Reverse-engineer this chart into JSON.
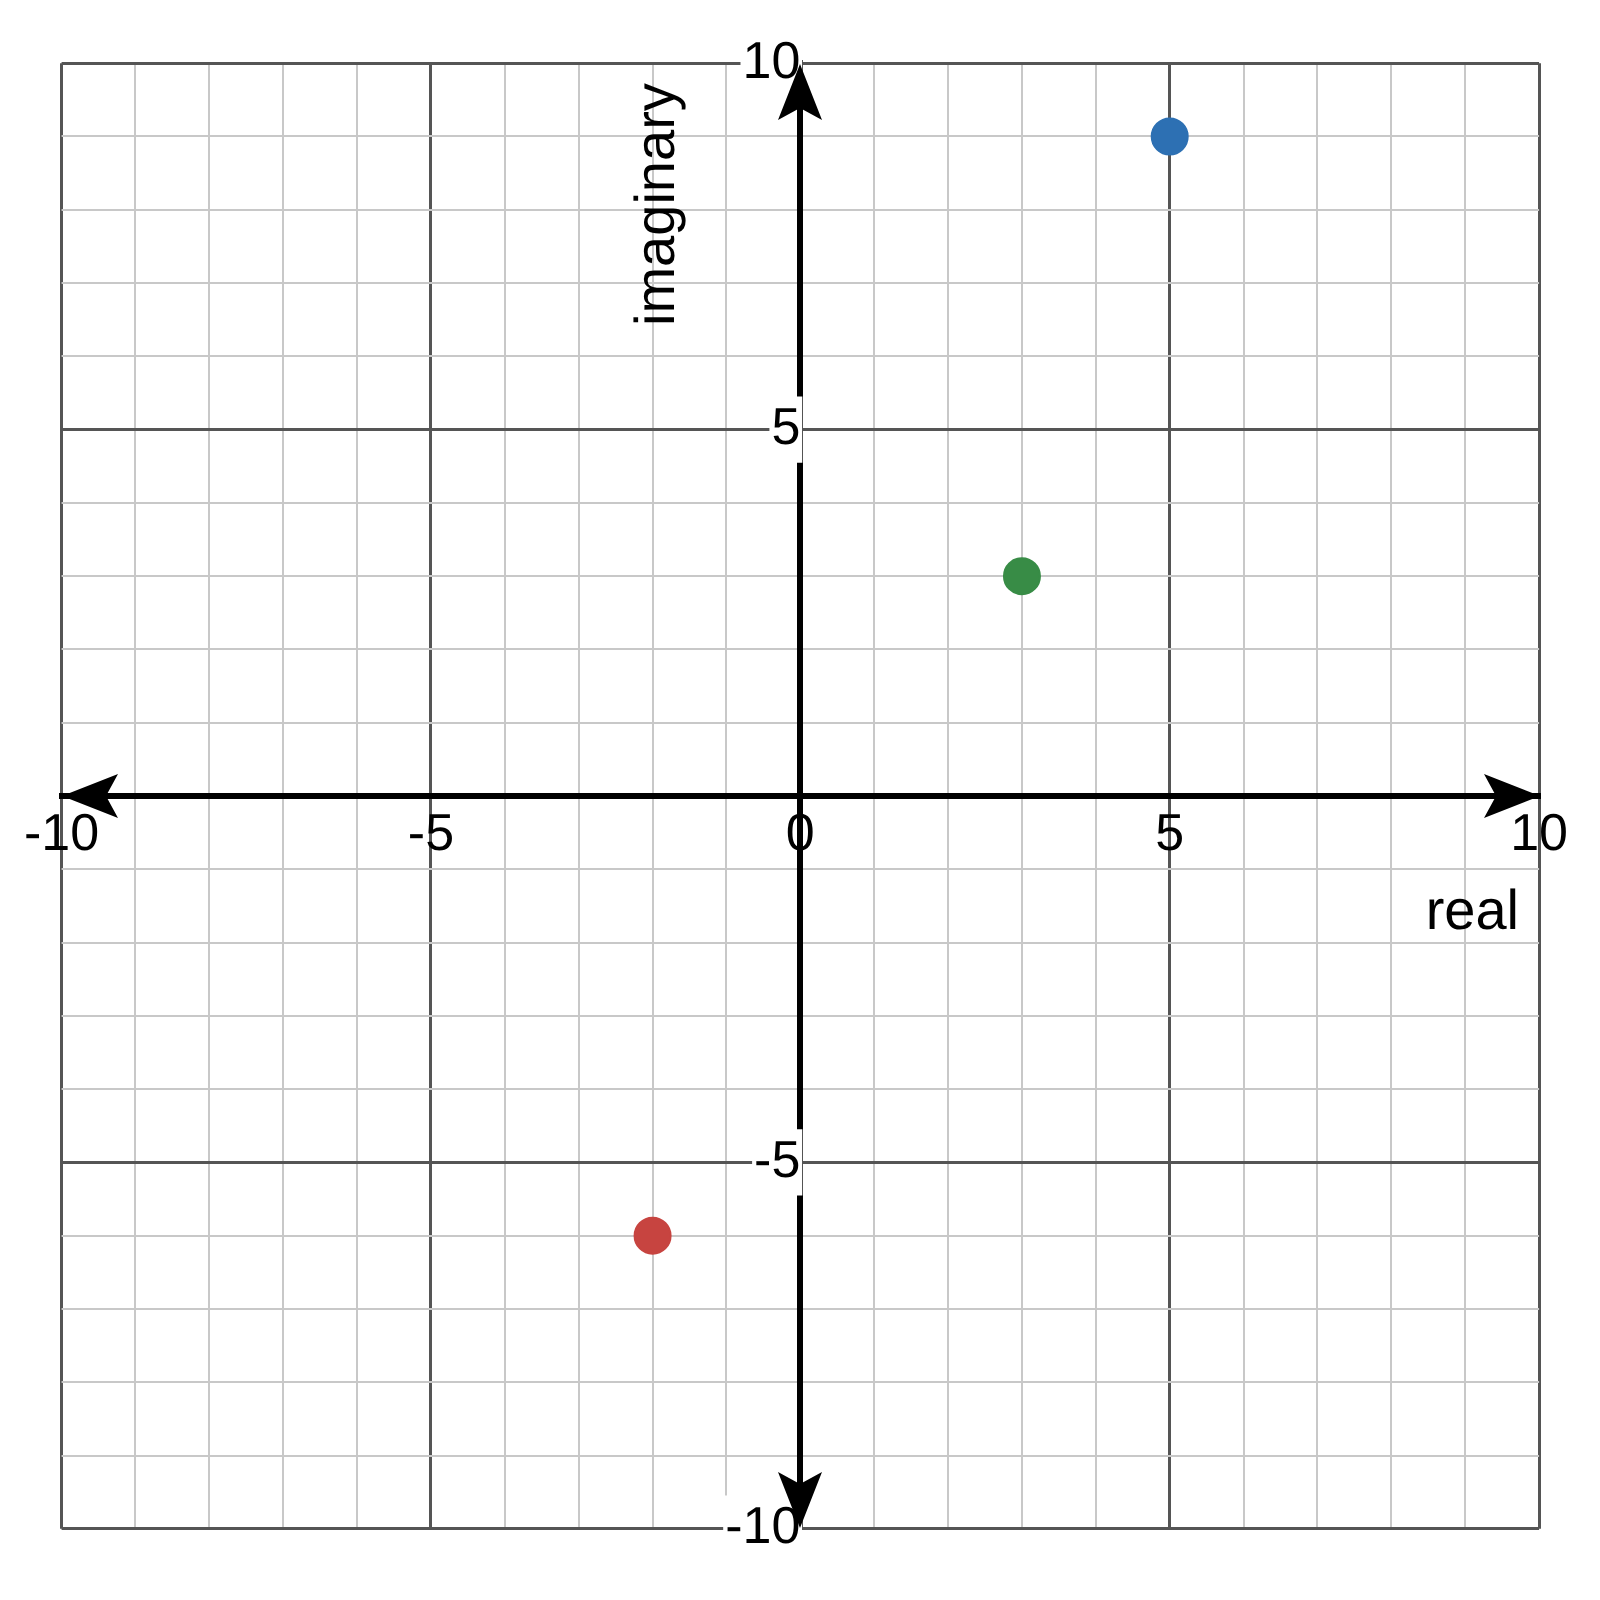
{
  "chart_data": {
    "type": "scatter",
    "xlabel": "real",
    "ylabel": "imaginary",
    "xlim": [
      -10,
      10
    ],
    "ylim": [
      -10,
      10
    ],
    "xticks": [
      -10,
      {
        "value": -9,
        "label": null
      },
      {
        "value": -8,
        "label": null
      },
      {
        "value": -7,
        "label": null
      },
      {
        "value": -6,
        "label": null
      },
      -5,
      {
        "value": -4,
        "label": null
      },
      {
        "value": -3,
        "label": null
      },
      {
        "value": -2,
        "label": null
      },
      {
        "value": -1,
        "label": null
      },
      0,
      {
        "value": 1,
        "label": null
      },
      {
        "value": 2,
        "label": null
      },
      {
        "value": 3,
        "label": null
      },
      {
        "value": 4,
        "label": null
      },
      5,
      {
        "value": 6,
        "label": null
      },
      {
        "value": 7,
        "label": null
      },
      {
        "value": 8,
        "label": null
      },
      {
        "value": 9,
        "label": null
      },
      10
    ],
    "yticks": [
      -10,
      {
        "value": -9,
        "label": null
      },
      {
        "value": -8,
        "label": null
      },
      {
        "value": -7,
        "label": null
      },
      {
        "value": -6,
        "label": null
      },
      -5,
      {
        "value": -4,
        "label": null
      },
      {
        "value": -3,
        "label": null
      },
      {
        "value": -2,
        "label": null
      },
      {
        "value": -1,
        "label": null
      },
      {
        "value": 0,
        "label": null
      },
      {
        "value": 1,
        "label": null
      },
      {
        "value": 2,
        "label": null
      },
      {
        "value": 3,
        "label": null
      },
      {
        "value": 4,
        "label": null
      },
      5,
      {
        "value": 6,
        "label": null
      },
      {
        "value": 7,
        "label": null
      },
      {
        "value": 8,
        "label": null
      },
      {
        "value": 9,
        "label": null
      },
      10
    ],
    "grid": true,
    "marker": "circle",
    "legend": false,
    "series": [
      {
        "color": "#2d70b3",
        "x": [
          5
        ],
        "values": [
          9
        ]
      },
      {
        "color": "#388c46",
        "x": [
          3
        ],
        "values": [
          3
        ]
      },
      {
        "color": "#c74440",
        "x": [
          -2
        ],
        "values": [
          -6
        ]
      }
    ]
  }
}
